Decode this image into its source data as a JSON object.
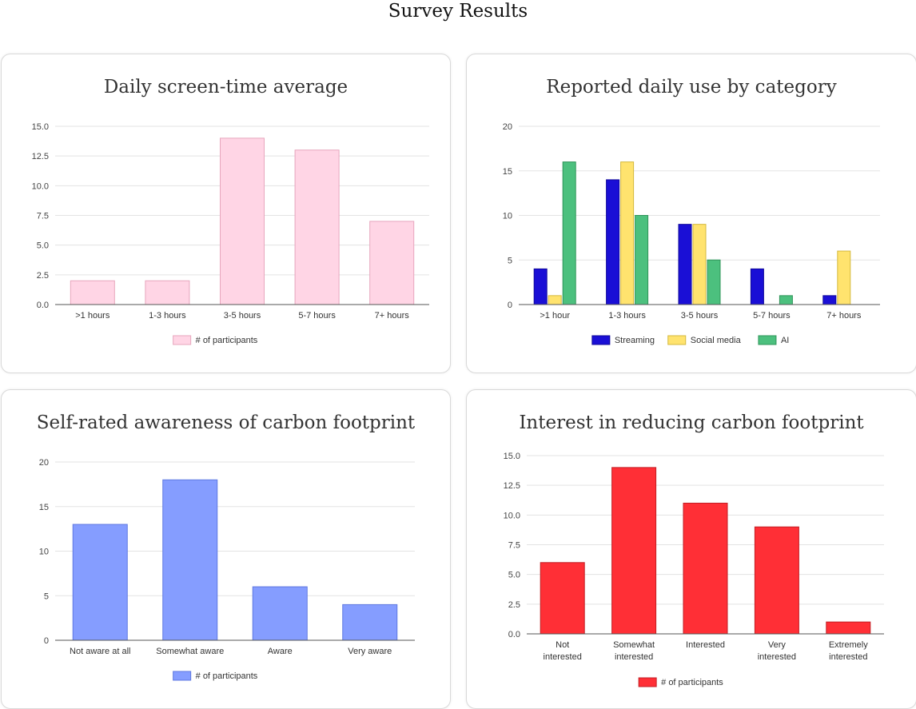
{
  "page_title": "Survey Results",
  "chart_data": [
    {
      "type": "bar",
      "title": "Daily screen-time average",
      "categories": [
        ">1 hours",
        "1-3 hours",
        "3-5 hours",
        "5-7 hours",
        "7+ hours"
      ],
      "series": [
        {
          "name": "# of participants",
          "values": [
            2,
            2,
            14,
            13,
            7
          ],
          "color": "#ffd5e5",
          "stroke": "#e7a6bd"
        }
      ],
      "ylim": [
        0,
        15
      ],
      "yticks": [
        "0.0",
        "2.5",
        "5.0",
        "7.5",
        "10.0",
        "12.5",
        "15.0"
      ],
      "legend": "bottom",
      "xlabel": "",
      "ylabel": ""
    },
    {
      "type": "bar",
      "title": "Reported daily use by category",
      "categories": [
        ">1 hour",
        "1-3 hours",
        "3-5 hours",
        "5-7 hours",
        "7+ hours"
      ],
      "series": [
        {
          "name": "Streaming",
          "values": [
            4,
            14,
            9,
            4,
            1
          ],
          "color": "#1a0fd6",
          "stroke": "#10089a"
        },
        {
          "name": "Social media",
          "values": [
            1,
            16,
            9,
            0,
            6
          ],
          "color": "#ffe36e",
          "stroke": "#d4b93e"
        },
        {
          "name": "AI",
          "values": [
            16,
            10,
            5,
            1,
            0
          ],
          "color": "#4cc07e",
          "stroke": "#2f9459"
        }
      ],
      "ylim": [
        0,
        20
      ],
      "yticks": [
        "0",
        "5",
        "10",
        "15",
        "20"
      ],
      "legend": "bottom",
      "xlabel": "",
      "ylabel": ""
    },
    {
      "type": "bar",
      "title": "Self-rated awareness of carbon footprint",
      "categories": [
        "Not aware at all",
        "Somewhat aware",
        "Aware",
        "Very aware"
      ],
      "series": [
        {
          "name": "# of participants",
          "values": [
            13,
            18,
            6,
            4
          ],
          "color": "#859dff",
          "stroke": "#5f78e0"
        }
      ],
      "ylim": [
        0,
        20
      ],
      "yticks": [
        "0",
        "5",
        "10",
        "15",
        "20"
      ],
      "legend": "bottom",
      "xlabel": "",
      "ylabel": ""
    },
    {
      "type": "bar",
      "title": "Interest in reducing carbon footprint",
      "categories": [
        "Not interested",
        "Somewhat interested",
        "Interested",
        "Very interested",
        "Extremely interested"
      ],
      "series": [
        {
          "name": "# of participants",
          "values": [
            6,
            14,
            11,
            9,
            1
          ],
          "color": "#ff2f36",
          "stroke": "#c21e24"
        }
      ],
      "ylim": [
        0,
        15
      ],
      "yticks": [
        "0.0",
        "2.5",
        "5.0",
        "7.5",
        "10.0",
        "12.5",
        "15.0"
      ],
      "legend": "bottom",
      "xlabel": "",
      "ylabel": ""
    }
  ]
}
